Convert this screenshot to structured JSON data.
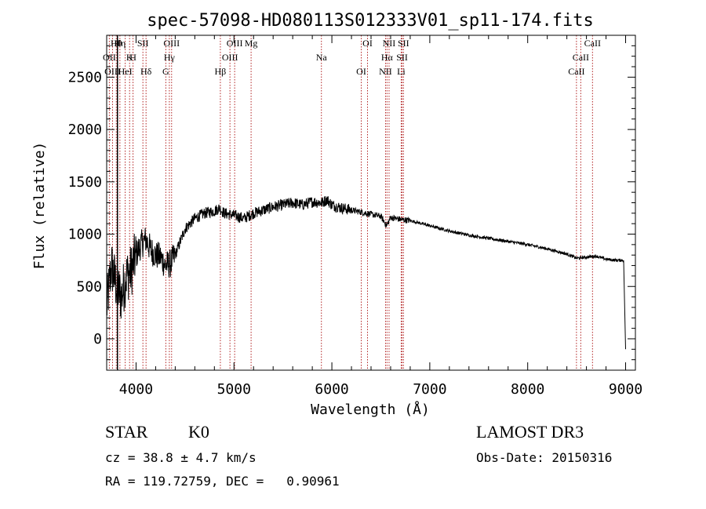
{
  "chart_data": {
    "type": "line",
    "title": "spec-57098-HD080113S012333V01_sp11-174.fits",
    "xlabel": "Wavelength (Å)",
    "ylabel": "Flux (relative)",
    "xlim": [
      3700,
      9100
    ],
    "ylim": [
      -300,
      2900
    ],
    "xticks": [
      4000,
      5000,
      6000,
      7000,
      8000,
      9000
    ],
    "yticks": [
      0,
      500,
      1000,
      1500,
      2000,
      2500
    ],
    "series": [
      {
        "name": "spectrum",
        "x": [
          3700,
          3750,
          3800,
          3850,
          3900,
          3950,
          4000,
          4050,
          4100,
          4150,
          4200,
          4250,
          4300,
          4350,
          4400,
          4500,
          4600,
          4700,
          4800,
          4850,
          4900,
          5000,
          5100,
          5200,
          5300,
          5400,
          5500,
          5600,
          5700,
          5800,
          5900,
          5950,
          6000,
          6100,
          6200,
          6300,
          6400,
          6500,
          6560,
          6600,
          6700,
          6800,
          7000,
          7200,
          7400,
          7600,
          7800,
          8000,
          8200,
          8400,
          8500,
          8600,
          8700,
          8800,
          8900,
          8980,
          9000
        ],
        "y": [
          300,
          700,
          500,
          400,
          600,
          650,
          800,
          900,
          950,
          850,
          800,
          780,
          700,
          720,
          800,
          1050,
          1150,
          1200,
          1220,
          1250,
          1200,
          1180,
          1150,
          1200,
          1230,
          1260,
          1280,
          1300,
          1280,
          1310,
          1300,
          1330,
          1280,
          1250,
          1230,
          1210,
          1190,
          1170,
          1080,
          1160,
          1140,
          1130,
          1080,
          1030,
          990,
          960,
          930,
          900,
          860,
          810,
          770,
          780,
          790,
          760,
          750,
          750,
          -100
        ]
      }
    ],
    "line_labels": [
      {
        "name": "Hθ",
        "wavelength": 3798
      },
      {
        "name": "OII",
        "wavelength": 3727
      },
      {
        "name": "OIII",
        "wavelength": 3760
      },
      {
        "name": "Hη",
        "wavelength": 3835
      },
      {
        "name": "K",
        "wavelength": 3934
      },
      {
        "name": "HeI",
        "wavelength": 3889
      },
      {
        "name": "SII",
        "wavelength": 4070
      },
      {
        "name": "H",
        "wavelength": 3969
      },
      {
        "name": "Hδ",
        "wavelength": 4102
      },
      {
        "name": "OIII",
        "wavelength": 4363
      },
      {
        "name": "Hγ",
        "wavelength": 4340
      },
      {
        "name": "G",
        "wavelength": 4304
      },
      {
        "name": "OIII",
        "wavelength": 5007
      },
      {
        "name": "OIII",
        "wavelength": 4959
      },
      {
        "name": "Hβ",
        "wavelength": 4861
      },
      {
        "name": "Mg",
        "wavelength": 5175
      },
      {
        "name": "Na",
        "wavelength": 5893
      },
      {
        "name": "OI",
        "wavelength": 6300
      },
      {
        "name": "OI",
        "wavelength": 6364
      },
      {
        "name": "Hα",
        "wavelength": 6563
      },
      {
        "name": "NII",
        "wavelength": 6548
      },
      {
        "name": "NII",
        "wavelength": 6584
      },
      {
        "name": "SII",
        "wavelength": 6717
      },
      {
        "name": "Li",
        "wavelength": 6708
      },
      {
        "name": "SII",
        "wavelength": 6731
      },
      {
        "name": "CaII",
        "wavelength": 8542
      },
      {
        "name": "CaII",
        "wavelength": 8498
      },
      {
        "name": "CaII",
        "wavelength": 8662
      }
    ]
  },
  "info": {
    "object_class": "STAR",
    "subclass": "K0",
    "survey": "LAMOST DR3",
    "cz": "cz = 38.8 ± 4.7 km/s",
    "obs_date": "Obs-Date: 20150316",
    "radec": "RA = 119.72759, DEC =   0.90961"
  }
}
